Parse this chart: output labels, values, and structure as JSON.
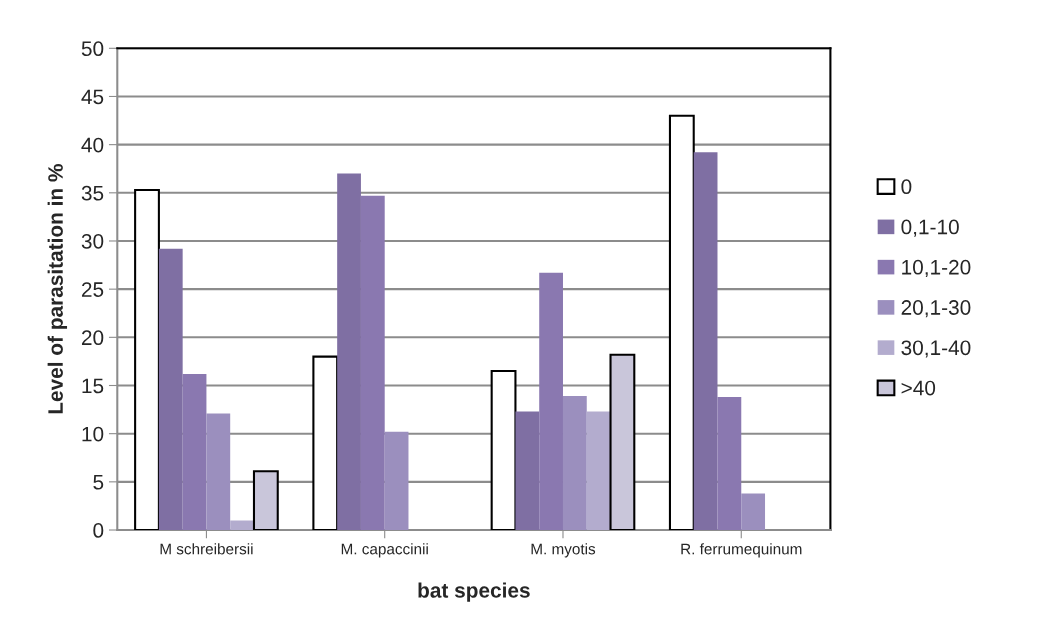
{
  "chart_data": {
    "type": "bar",
    "xlabel": "bat species",
    "ylabel": "Level of parasitation in %",
    "categories": [
      "M schreibersii",
      "M. capaccinii",
      "M. myotis",
      "R. ferrumequinum"
    ],
    "series": [
      {
        "name": "0",
        "color": "#ffffff",
        "values": [
          35.3,
          18.0,
          16.5,
          43.0
        ]
      },
      {
        "name": "0,1-10",
        "color": "#7f6fa3",
        "values": [
          29.2,
          37.0,
          12.3,
          39.2
        ]
      },
      {
        "name": "10,1-20",
        "color": "#8a78b0",
        "values": [
          16.2,
          34.7,
          26.7,
          13.8
        ]
      },
      {
        "name": "20,1-30",
        "color": "#9b8fbe",
        "values": [
          12.1,
          10.2,
          13.9,
          3.8
        ]
      },
      {
        "name": "30,1-40",
        "color": "#b3acce",
        "values": [
          1.0,
          null,
          12.3,
          null
        ]
      },
      {
        "name": ">40",
        "color": "#c9c6da",
        "values": [
          6.1,
          null,
          18.2,
          null
        ]
      }
    ],
    "ylim": [
      0,
      50
    ],
    "yticks": [
      0,
      5,
      10,
      15,
      20,
      25,
      30,
      35,
      40,
      45,
      50
    ],
    "grid": "y",
    "legend": "right"
  }
}
